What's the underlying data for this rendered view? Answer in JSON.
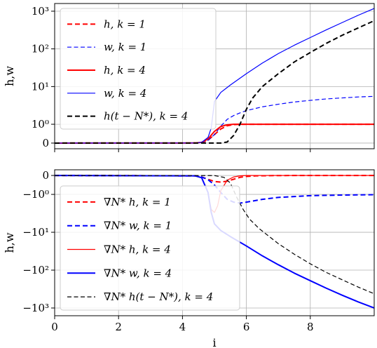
{
  "chart_data": [
    {
      "type": "line",
      "panel": "top",
      "title": "",
      "xlabel": "",
      "ylabel": "h,w",
      "xlim": [
        0,
        10
      ],
      "yscale": "symlog",
      "ylim": [
        -0.3,
        1600
      ],
      "yticks": [
        0,
        1,
        10,
        100,
        1000
      ],
      "ytick_labels": [
        "0",
        "10⁰",
        "10¹",
        "10²",
        "10³"
      ],
      "xticks": [
        0,
        2,
        4,
        6,
        8
      ],
      "grid": true,
      "legend": {
        "placement": "top-left"
      },
      "series": [
        {
          "name": "h, k = 1",
          "color": "#ff0000",
          "style": "dashed",
          "width": 2,
          "x": [
            0,
            4.4,
            4.6,
            4.8,
            5.0,
            5.2,
            5.4,
            5.6,
            5.8,
            6.0,
            7.0,
            8.0,
            9.0,
            10.0
          ],
          "y": [
            0,
            0.005,
            0.03,
            0.15,
            0.45,
            0.75,
            0.92,
            0.98,
            1.0,
            1.0,
            1.0,
            1.0,
            1.0,
            1.0
          ]
        },
        {
          "name": "w, k = 1",
          "color": "#0000ff",
          "style": "dashed",
          "width": 1.2,
          "x": [
            0,
            4.4,
            4.6,
            4.8,
            5.0,
            5.2,
            5.4,
            5.6,
            5.8,
            6.0,
            6.5,
            7.0,
            7.5,
            8.0,
            8.5,
            9.0,
            9.5,
            10.0
          ],
          "y": [
            0,
            0.005,
            0.03,
            0.15,
            0.45,
            0.9,
            1.35,
            1.7,
            2.0,
            2.3,
            2.9,
            3.4,
            3.9,
            4.3,
            4.7,
            5.0,
            5.3,
            5.5
          ]
        },
        {
          "name": "h, k = 4",
          "color": "#ff0000",
          "style": "solid",
          "width": 2,
          "x": [
            0,
            4.4,
            4.6,
            4.8,
            5.0,
            5.2,
            5.4,
            5.6,
            6.0,
            7.0,
            8.0,
            9.0,
            10.0
          ],
          "y": [
            0,
            0.005,
            0.04,
            0.22,
            0.62,
            0.88,
            0.97,
            1.0,
            1.0,
            1.0,
            1.0,
            1.0,
            1.0
          ]
        },
        {
          "name": "w, k = 4",
          "color": "#0000ff",
          "style": "solid",
          "width": 1.2,
          "x": [
            0,
            4.4,
            4.6,
            4.8,
            4.9,
            5.0,
            5.2,
            5.5,
            6.0,
            6.5,
            7.0,
            7.5,
            8.0,
            8.5,
            9.0,
            9.5,
            10.0
          ],
          "y": [
            0,
            0.005,
            0.04,
            0.3,
            0.8,
            4.0,
            7.0,
            11,
            22,
            42,
            75,
            125,
            200,
            320,
            500,
            780,
            1180
          ]
        },
        {
          "name": "h(t − N*), k = 4",
          "color": "#000000",
          "style": "dashed",
          "width": 2,
          "x": [
            0,
            5.2,
            5.4,
            5.6,
            5.8,
            6.0,
            6.2,
            6.5,
            7.0,
            7.5,
            8.0,
            8.5,
            9.0,
            9.5,
            10.0
          ],
          "y": [
            0,
            0.003,
            0.06,
            0.4,
            1.0,
            2.5,
            5.0,
            10,
            22,
            45,
            80,
            140,
            230,
            360,
            560
          ]
        }
      ]
    },
    {
      "type": "line",
      "panel": "bottom",
      "title": "",
      "xlabel": "i",
      "ylabel": "h,w",
      "xlim": [
        0,
        10
      ],
      "yscale": "symlog",
      "ylim": [
        -1600,
        0.3
      ],
      "yticks": [
        0,
        -1,
        -10,
        -100,
        -1000
      ],
      "ytick_labels": [
        "0",
        "−10⁰",
        "−10¹",
        "−10²",
        "−10³"
      ],
      "xticks": [
        0,
        2,
        4,
        6,
        8
      ],
      "xtick_labels": [
        "0",
        "2",
        "4",
        "6",
        "8"
      ],
      "grid": true,
      "legend": {
        "placement": "bottom-left"
      },
      "series": [
        {
          "name": "∇N* h, k = 1",
          "color": "#ff0000",
          "style": "dashed",
          "width": 2,
          "x": [
            0,
            4.4,
            4.6,
            4.8,
            5.0,
            5.2,
            5.4,
            5.6,
            5.8,
            6.0,
            6.3,
            7.0,
            8.0,
            9.0,
            10.0
          ],
          "y": [
            0,
            -0.02,
            -0.08,
            -0.2,
            -0.32,
            -0.35,
            -0.3,
            -0.2,
            -0.1,
            -0.05,
            -0.02,
            -0.005,
            0,
            0,
            0
          ]
        },
        {
          "name": "∇N* w, k = 1",
          "color": "#0000ff",
          "style": "dashed",
          "width": 2,
          "x": [
            0,
            4.4,
            4.6,
            4.8,
            5.0,
            5.2,
            5.4,
            5.6,
            5.8,
            6.0,
            6.5,
            7.0,
            8.0,
            9.0,
            10.0
          ],
          "y": [
            0,
            -0.02,
            -0.08,
            -0.22,
            -0.5,
            -0.9,
            -1.35,
            -1.6,
            -1.7,
            -1.6,
            -1.35,
            -1.2,
            -1.08,
            -1.04,
            -1.02
          ]
        },
        {
          "name": "∇N* h, k = 4",
          "color": "#ff0000",
          "style": "solid",
          "width": 1.2,
          "x": [
            0,
            4.4,
            4.6,
            4.8,
            4.9,
            5.0,
            5.1,
            5.2,
            5.4,
            5.6,
            5.8,
            6.0,
            7.0,
            8.0,
            9.0,
            10.0
          ],
          "y": [
            0,
            -0.02,
            -0.12,
            -0.9,
            -2.5,
            -3.0,
            -2.0,
            -0.8,
            -0.25,
            -0.08,
            -0.02,
            0,
            0,
            0,
            0,
            0
          ]
        },
        {
          "name": "∇N* w, k = 4",
          "color": "#0000ff",
          "style": "solid",
          "width": 2,
          "x": [
            0,
            4.4,
            4.6,
            4.8,
            4.9,
            5.0,
            5.2,
            5.5,
            6.0,
            6.5,
            7.0,
            7.5,
            8.0,
            8.5,
            9.0,
            9.5,
            10.0
          ],
          "y": [
            0,
            -0.02,
            -0.12,
            -0.9,
            -3.0,
            -6.0,
            -9.0,
            -13,
            -23,
            -42,
            -72,
            -120,
            -190,
            -300,
            -460,
            -690,
            -1000
          ]
        },
        {
          "name": "∇N* h(t − N*), k = 4",
          "color": "#000000",
          "style": "dashed",
          "width": 1.2,
          "x": [
            0,
            5.0,
            5.3,
            5.5,
            5.7,
            5.9,
            6.1,
            6.4,
            7.0,
            7.5,
            8.0,
            8.5,
            9.0,
            9.5,
            10.0
          ],
          "y": [
            0,
            -0.005,
            -0.1,
            -0.4,
            -1.2,
            -2.5,
            -4.5,
            -8,
            -20,
            -38,
            -68,
            -115,
            -180,
            -280,
            -420
          ]
        }
      ]
    }
  ]
}
